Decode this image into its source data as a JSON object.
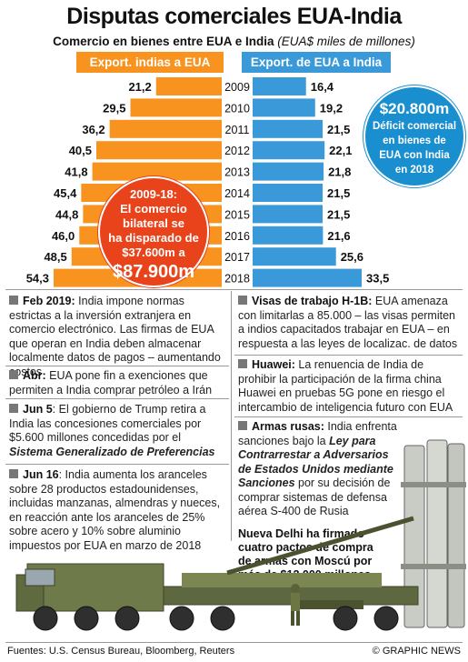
{
  "title": "Disputas comerciales EUA-India",
  "subtitle_main": "Comercio en bienes entre EUA e India",
  "subtitle_unit": "(EUA$ miles de millones)",
  "colors": {
    "india": "#f7931e",
    "usa": "#3a9ad9",
    "red": "#e8431b",
    "blue_circle": "#1a8fd0"
  },
  "chart_data": {
    "type": "bar",
    "categories": [
      "2009",
      "2010",
      "2011",
      "2012",
      "2013",
      "2014",
      "2015",
      "2016",
      "2017",
      "2018"
    ],
    "series": [
      {
        "name": "Export. indias a EUA",
        "values": [
          21.2,
          29.5,
          36.2,
          40.5,
          41.8,
          45.4,
          44.8,
          46.0,
          48.5,
          54.3
        ],
        "labels": [
          "21,2",
          "29,5",
          "36,2",
          "40,5",
          "41,8",
          "45,4",
          "44,8",
          "46,0",
          "48,5",
          "54,3"
        ]
      },
      {
        "name": "Export. de EUA a India",
        "values": [
          16.4,
          19.2,
          21.5,
          22.1,
          21.8,
          21.5,
          21.5,
          21.6,
          25.6,
          33.5
        ],
        "labels": [
          "16,4",
          "19,2",
          "21,5",
          "22,1",
          "21,8",
          "21,5",
          "21,5",
          "21,6",
          "25,6",
          "33,5"
        ]
      }
    ]
  },
  "deficit": {
    "amount": "$20.800m",
    "text": [
      "Déficit comercial",
      "en bienes de",
      "EUA con India",
      "en 2018"
    ]
  },
  "bubble": {
    "lines": [
      "2009-18:",
      "El comercio",
      "bilateral se",
      "ha disparado de",
      "$37.600m a"
    ],
    "amount": "$87.900m"
  },
  "items": {
    "feb": {
      "head": "Feb 2019:",
      "text": " India impone normas estrictas a la inversión extranjera en comercio electrónico. Las firmas de EUA que operan en India deben almacenar localmente datos de pagos – aumentando costos"
    },
    "abr": {
      "head": "Abr:",
      "text": " EUA pone fin a exenciones que permiten a India comprar petróleo a Irán"
    },
    "jun5": {
      "head": "Jun 5",
      "text": ": El gobierno de Trump retira a India las concesiones comerciales por $5.600 millones concedidas por el ",
      "emph": "Sistema Generalizado de Preferencias"
    },
    "jun16": {
      "head": "Jun 16",
      "text": ": India aumenta los aranceles sobre 28 productos estadounidenses, incluidas manzanas, almendras y nueces, en reacción ante los aranceles de 25% sobre acero y 10% sobre aluminio impuestos por EUA en marzo de 2018"
    },
    "visas": {
      "head": "Visas de trabajo H-1B:",
      "text": " EUA amenaza con limitarlas a 85.000 – las visas permiten a indios capacitados trabajar en EUA – en respuesta a las leyes de localizac. de datos"
    },
    "huawei": {
      "head": "Huawei:",
      "text": " La renuencia de India de prohibir la participación de la firma china Huawei en pruebas 5G pone en riesgo el intercambio de inteligencia futuro con EUA"
    },
    "armas": {
      "head": "Armas rusas:",
      "text1": " India enfrenta sanciones bajo la ",
      "emph": "Ley para Contrarrestar a Adversarios de Estados Unidos mediante Sanciones",
      "text2": " por su decisión de comprar sistemas de defensa aérea S-400 de Rusia"
    }
  },
  "deal": "Nueva Delhi ha firmado cuatro pactos de compra de armas con Moscú por más de $12.000 millones",
  "footer": {
    "sources": "Fuentes: U.S. Census Bureau, Bloomberg, Reuters",
    "credit": "© GRAPHIC NEWS"
  }
}
